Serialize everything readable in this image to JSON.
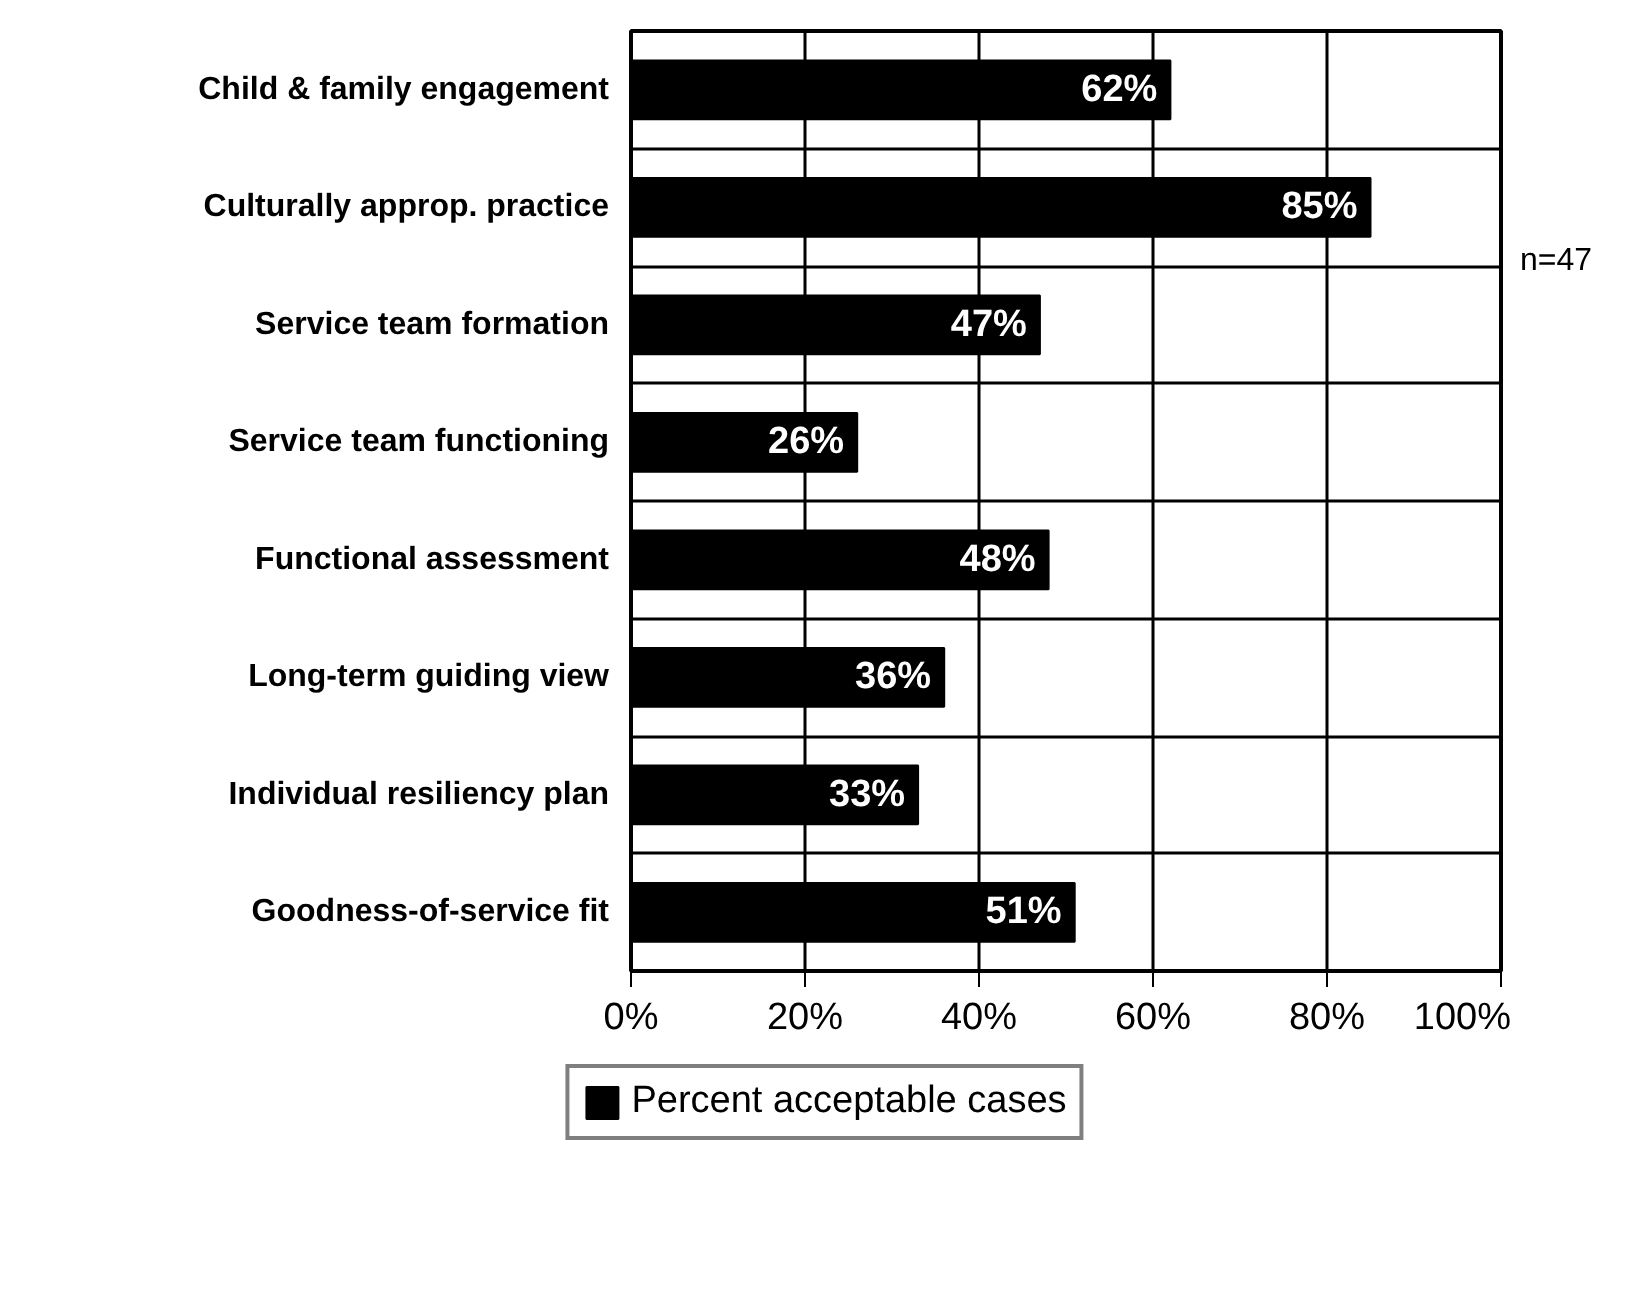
{
  "chart_data": {
    "type": "bar",
    "orientation": "horizontal",
    "categories": [
      "Child & family engagement",
      "Culturally approp. practice",
      "Service team formation",
      "Service team functioning",
      "Functional assessment",
      "Long-term guiding view",
      "Individual resiliency plan",
      "Goodness-of-service fit"
    ],
    "series": [
      {
        "name": "Percent acceptable cases",
        "color": "#000000",
        "values": [
          62,
          85,
          47,
          26,
          48,
          36,
          33,
          51
        ],
        "value_labels": [
          "62%",
          "85%",
          "47%",
          "26%",
          "48%",
          "36%",
          "33%",
          "51%"
        ]
      }
    ],
    "xlim": [
      0,
      100
    ],
    "xticks": [
      {
        "value": 0,
        "label": "0%"
      },
      {
        "value": 20,
        "label": "20%"
      },
      {
        "value": 40,
        "label": "40%"
      },
      {
        "value": 60,
        "label": "60%"
      },
      {
        "value": 80,
        "label": "80%"
      },
      {
        "value": 100,
        "label": "100%"
      }
    ],
    "annotations": [
      "n=47"
    ],
    "grid": true,
    "legend": "bottom"
  }
}
